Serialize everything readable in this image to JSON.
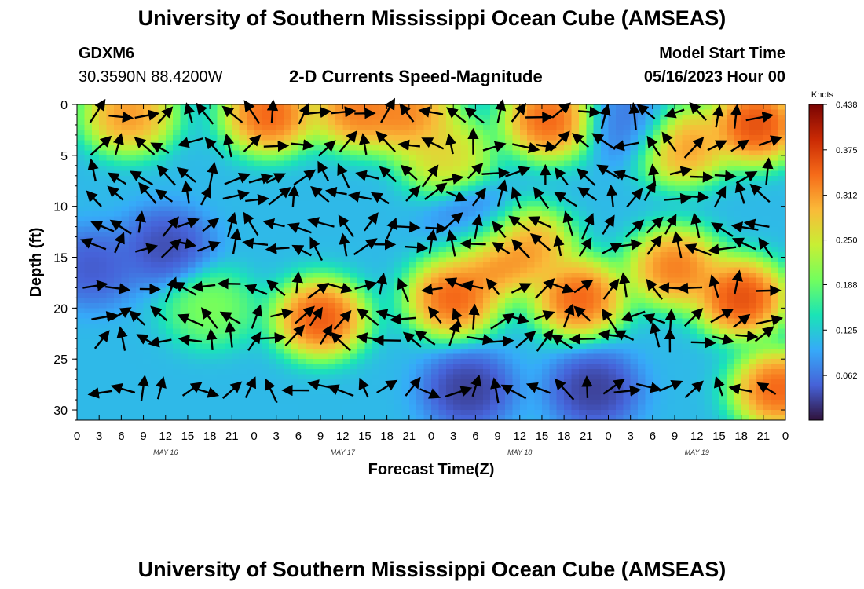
{
  "header": {
    "title": "University of Southern Mississippi Ocean Cube (AMSEAS)",
    "station_id": "GDXM6",
    "coordinates": "30.3590N  88.4200W",
    "chart_title": "2-D Currents Speed-Magnitude",
    "model_start_label": "Model Start Time",
    "model_start_value": "05/16/2023 Hour 00"
  },
  "footer": {
    "title": "University of Southern Mississippi Ocean Cube (AMSEAS)"
  },
  "chart_data": {
    "type": "heatmap",
    "xlabel": "Forecast Time(Z)",
    "ylabel": "Depth (ft)",
    "x_tick_labels": [
      "0",
      "3",
      "6",
      "9",
      "12",
      "15",
      "18",
      "21",
      "0",
      "3",
      "6",
      "9",
      "12",
      "15",
      "18",
      "21",
      "0",
      "3",
      "6",
      "9",
      "12",
      "15",
      "18",
      "21",
      "0",
      "3",
      "6",
      "9",
      "12",
      "15",
      "18",
      "21",
      "0"
    ],
    "day_labels": [
      {
        "label": "MAY 16",
        "hour": 12
      },
      {
        "label": "MAY 17",
        "hour": 36
      },
      {
        "label": "MAY 18",
        "hour": 60
      },
      {
        "label": "MAY 19",
        "hour": 84
      }
    ],
    "xlim": [
      0,
      96
    ],
    "ylim": [
      0,
      31
    ],
    "y_ticks": [
      0,
      5,
      10,
      15,
      20,
      25,
      30
    ],
    "y_inverted": true,
    "colorbar": {
      "unit": "Knots",
      "min": 0,
      "max": 0.438,
      "tick_labels": [
        "0.438",
        "0.375",
        "0.312",
        "0.250",
        "0.188",
        "0.125",
        "0.062"
      ],
      "tick_values": [
        0.438,
        0.375,
        0.312,
        0.25,
        0.188,
        0.125,
        0.062
      ],
      "colors": [
        "#30123b",
        "#4662d8",
        "#36aaf9",
        "#1ae4b6",
        "#72fe5e",
        "#c8ef34",
        "#faba39",
        "#f66b19",
        "#ca2a04",
        "#7a0403"
      ]
    },
    "speed_field_hotspots": [
      {
        "hour": 7,
        "depth": 1,
        "speed": 0.36
      },
      {
        "hour": 26,
        "depth": 1,
        "speed": 0.4
      },
      {
        "hour": 38,
        "depth": 0.5,
        "speed": 0.38
      },
      {
        "hour": 45,
        "depth": 1,
        "speed": 0.37
      },
      {
        "hour": 64,
        "depth": 1.5,
        "speed": 0.4
      },
      {
        "hour": 82,
        "depth": 4,
        "speed": 0.36
      },
      {
        "hour": 92,
        "depth": 2,
        "speed": 0.42
      },
      {
        "hour": 33,
        "depth": 21,
        "speed": 0.41
      },
      {
        "hour": 51,
        "depth": 19,
        "speed": 0.4
      },
      {
        "hour": 56,
        "depth": 15,
        "speed": 0.38
      },
      {
        "hour": 61,
        "depth": 14,
        "speed": 0.35
      },
      {
        "hour": 68,
        "depth": 19,
        "speed": 0.4
      },
      {
        "hour": 81,
        "depth": 16,
        "speed": 0.38
      },
      {
        "hour": 90,
        "depth": 19,
        "speed": 0.42
      },
      {
        "hour": 95,
        "depth": 28,
        "speed": 0.4
      },
      {
        "hour": 18,
        "depth": 20,
        "speed": 0.22
      },
      {
        "hour": 50,
        "depth": 5,
        "speed": 0.3
      },
      {
        "hour": 12,
        "depth": 14,
        "speed": 0.02
      },
      {
        "hour": 53,
        "depth": 28,
        "speed": 0.01
      },
      {
        "hour": 70,
        "depth": 28,
        "speed": 0.01
      },
      {
        "hour": 2,
        "depth": 16,
        "speed": 0.03
      },
      {
        "hour": 75,
        "depth": 2,
        "speed": 0.05
      },
      {
        "hour": 54,
        "depth": 12,
        "speed": 0.05
      }
    ],
    "base_speed": 0.11,
    "vector_depths": [
      1,
      4,
      7,
      9,
      12,
      14,
      18,
      21,
      23,
      28
    ],
    "vector_hours": [
      0,
      3,
      6,
      9,
      12,
      15,
      18,
      21,
      24,
      27,
      30,
      33,
      36,
      39,
      42,
      45,
      48,
      51,
      54,
      57,
      60,
      63,
      66,
      69,
      72,
      75,
      78,
      81,
      84,
      87,
      90,
      93,
      96
    ],
    "vector_dir_seed": 7
  }
}
